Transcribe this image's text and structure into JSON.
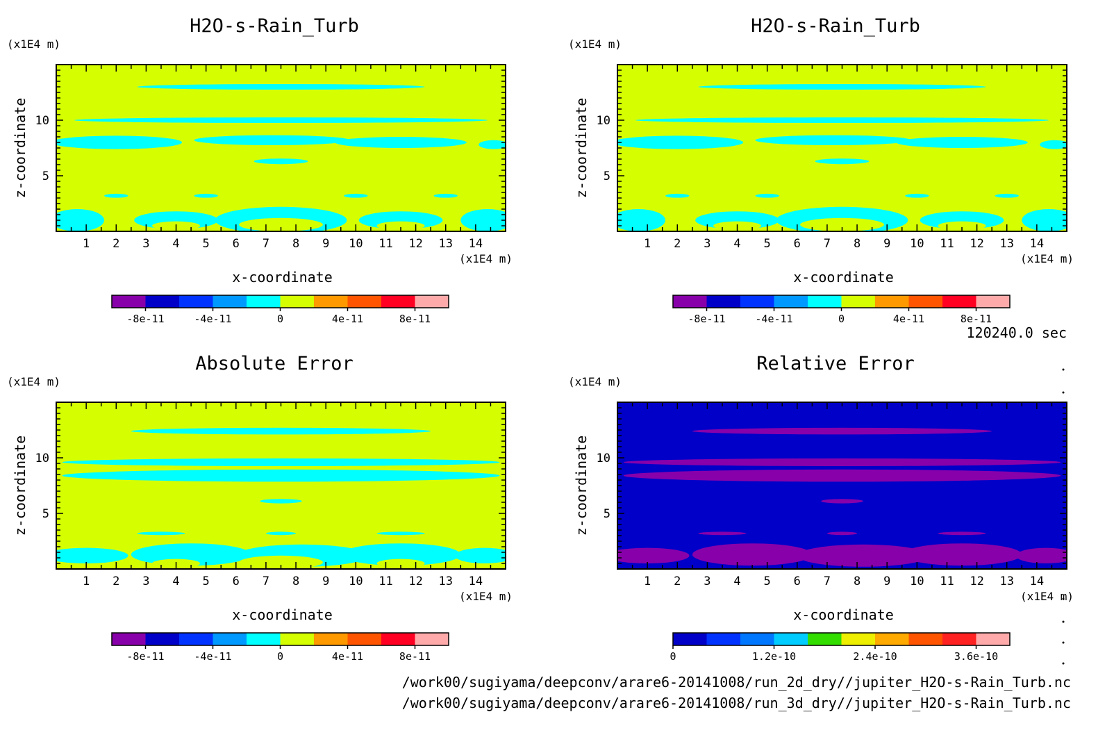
{
  "time_label": "120240.0 sec",
  "footer": {
    "line1": "/work00/sugiyama/deepconv/arare6-20141008/run_2d_dry//jupiter_H2O-s-Rain_Turb.nc",
    "line2": "/work00/sugiyama/deepconv/arare6-20141008/run_3d_dry//jupiter_H2O-s-Rain_Turb.nc"
  },
  "chart_data": [
    {
      "type": "heatmap",
      "title": "H2O-s-Rain_Turb",
      "xlabel": "x-coordinate",
      "ylabel": "z-coordinate",
      "x_unit": "(x1E4 m)",
      "y_unit": "(x1E4 m)",
      "xlim": [
        0,
        15
      ],
      "ylim": [
        0,
        15
      ],
      "x_ticks": [
        1,
        2,
        3,
        4,
        5,
        6,
        7,
        8,
        9,
        10,
        11,
        12,
        13,
        14
      ],
      "y_ticks": [
        5,
        10
      ],
      "background_color": "#d5ff00",
      "pattern": "field",
      "colorbar": {
        "colors": [
          "#8800aa",
          "#0000c8",
          "#0033ff",
          "#0099ff",
          "#00ffff",
          "#d5ff00",
          "#ff9900",
          "#ff5500",
          "#ff0022",
          "#ffaaaa"
        ],
        "labels": [
          "-8e-11",
          "-4e-11",
          "0",
          "4e-11",
          "8e-11"
        ],
        "label_positions": [
          1,
          3,
          5,
          7,
          9
        ]
      }
    },
    {
      "type": "heatmap",
      "title": "H2O-s-Rain_Turb",
      "xlabel": "x-coordinate",
      "ylabel": "z-coordinate",
      "x_unit": "(x1E4 m)",
      "y_unit": "(x1E4 m)",
      "xlim": [
        0,
        15
      ],
      "ylim": [
        0,
        15
      ],
      "x_ticks": [
        1,
        2,
        3,
        4,
        5,
        6,
        7,
        8,
        9,
        10,
        11,
        12,
        13,
        14
      ],
      "y_ticks": [
        5,
        10
      ],
      "background_color": "#d5ff00",
      "pattern": "field",
      "colorbar": {
        "colors": [
          "#8800aa",
          "#0000c8",
          "#0033ff",
          "#0099ff",
          "#00ffff",
          "#d5ff00",
          "#ff9900",
          "#ff5500",
          "#ff0022",
          "#ffaaaa"
        ],
        "labels": [
          "-8e-11",
          "-4e-11",
          "0",
          "4e-11",
          "8e-11"
        ],
        "label_positions": [
          1,
          3,
          5,
          7,
          9
        ]
      }
    },
    {
      "type": "heatmap",
      "title": "Absolute Error",
      "xlabel": "x-coordinate",
      "ylabel": "z-coordinate",
      "x_unit": "(x1E4 m)",
      "y_unit": "(x1E4 m)",
      "xlim": [
        0,
        15
      ],
      "ylim": [
        0,
        15
      ],
      "x_ticks": [
        1,
        2,
        3,
        4,
        5,
        6,
        7,
        8,
        9,
        10,
        11,
        12,
        13,
        14
      ],
      "y_ticks": [
        5,
        10
      ],
      "background_color": "#d5ff00",
      "pattern": "error",
      "colorbar": {
        "colors": [
          "#8800aa",
          "#0000c8",
          "#0033ff",
          "#0099ff",
          "#00ffff",
          "#d5ff00",
          "#ff9900",
          "#ff5500",
          "#ff0022",
          "#ffaaaa"
        ],
        "labels": [
          "-8e-11",
          "-4e-11",
          "0",
          "4e-11",
          "8e-11"
        ],
        "label_positions": [
          1,
          3,
          5,
          7,
          9
        ]
      }
    },
    {
      "type": "heatmap",
      "title": "Relative Error",
      "xlabel": "x-coordinate",
      "ylabel": "z-coordinate",
      "x_unit": "(x1E4 m)",
      "y_unit": "(x1E4 m)",
      "xlim": [
        0,
        15
      ],
      "ylim": [
        0,
        15
      ],
      "x_ticks": [
        1,
        2,
        3,
        4,
        5,
        6,
        7,
        8,
        9,
        10,
        11,
        12,
        13,
        14
      ],
      "y_ticks": [
        5,
        10
      ],
      "background_color": "#0000c8",
      "pattern": "relerr",
      "colorbar": {
        "colors": [
          "#0000c8",
          "#0033ff",
          "#0077ff",
          "#00ccff",
          "#33dd00",
          "#eeee00",
          "#ffaa00",
          "#ff5500",
          "#ff2222",
          "#ffaaaa"
        ],
        "labels": [
          "0",
          "1.2e-10",
          "2.4e-10",
          "3.6e-10"
        ],
        "label_positions": [
          0,
          3,
          6,
          9
        ]
      }
    }
  ]
}
